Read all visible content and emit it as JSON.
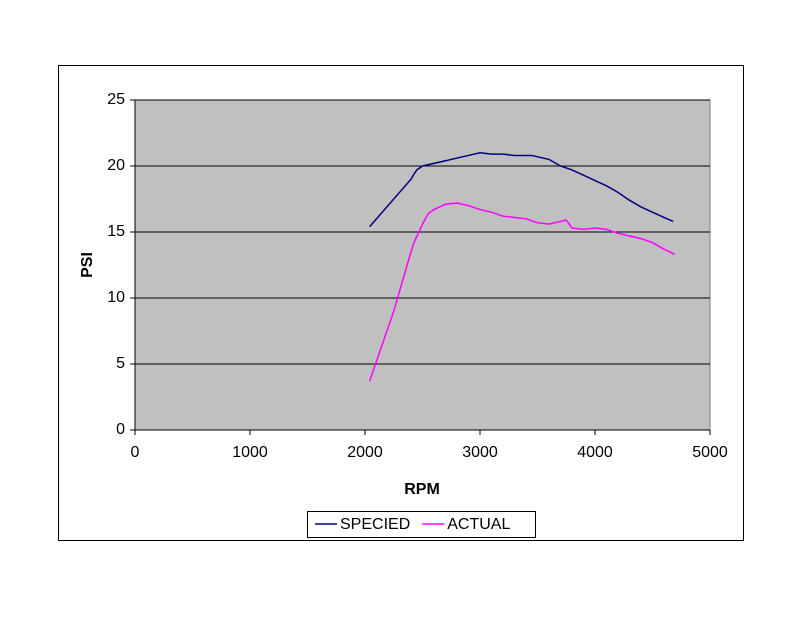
{
  "chart_data": {
    "type": "line",
    "x_label": "RPM",
    "y_label": "PSI",
    "xlim": [
      0,
      5000
    ],
    "xticks": [
      0,
      1000,
      2000,
      3000,
      4000,
      5000
    ],
    "ylim": [
      0,
      25
    ],
    "yticks": [
      0,
      5,
      10,
      15,
      20,
      25
    ],
    "grid": true,
    "legend": "bottom",
    "series": [
      {
        "name": "SPECIED",
        "color": "#000080",
        "x": [
          2040,
          2400,
          2420,
          2450,
          2500,
          2600,
          2700,
          2800,
          2900,
          3000,
          3100,
          3200,
          3300,
          3450,
          3600,
          3700,
          3800,
          3900,
          4000,
          4100,
          4200,
          4300,
          4400,
          4500,
          4600,
          4680
        ],
        "values": [
          15.4,
          19,
          19.3,
          19.7,
          20,
          20.2,
          20.4,
          20.6,
          20.8,
          21.0,
          20.9,
          20.9,
          20.8,
          20.8,
          20.5,
          20.0,
          19.7,
          19.3,
          18.9,
          18.5,
          18.0,
          17.4,
          16.9,
          16.5,
          16.1,
          15.8
        ]
      },
      {
        "name": "ACTUAL",
        "color": "#ff00ff",
        "x": [
          2040,
          2250,
          2400,
          2430,
          2470,
          2500,
          2550,
          2600,
          2700,
          2800,
          2900,
          3000,
          3100,
          3200,
          3300,
          3400,
          3500,
          3600,
          3700,
          3750,
          3800,
          3900,
          4000,
          4100,
          4200,
          4300,
          4400,
          4500,
          4600,
          4650,
          4690
        ],
        "values": [
          3.7,
          9,
          13.5,
          14.3,
          15,
          15.6,
          16.4,
          16.7,
          17.1,
          17.2,
          17.0,
          16.7,
          16.5,
          16.2,
          16.1,
          16.0,
          15.7,
          15.6,
          15.8,
          15.9,
          15.3,
          15.2,
          15.3,
          15.2,
          14.9,
          14.7,
          14.5,
          14.2,
          13.7,
          13.5,
          13.3
        ]
      }
    ]
  }
}
